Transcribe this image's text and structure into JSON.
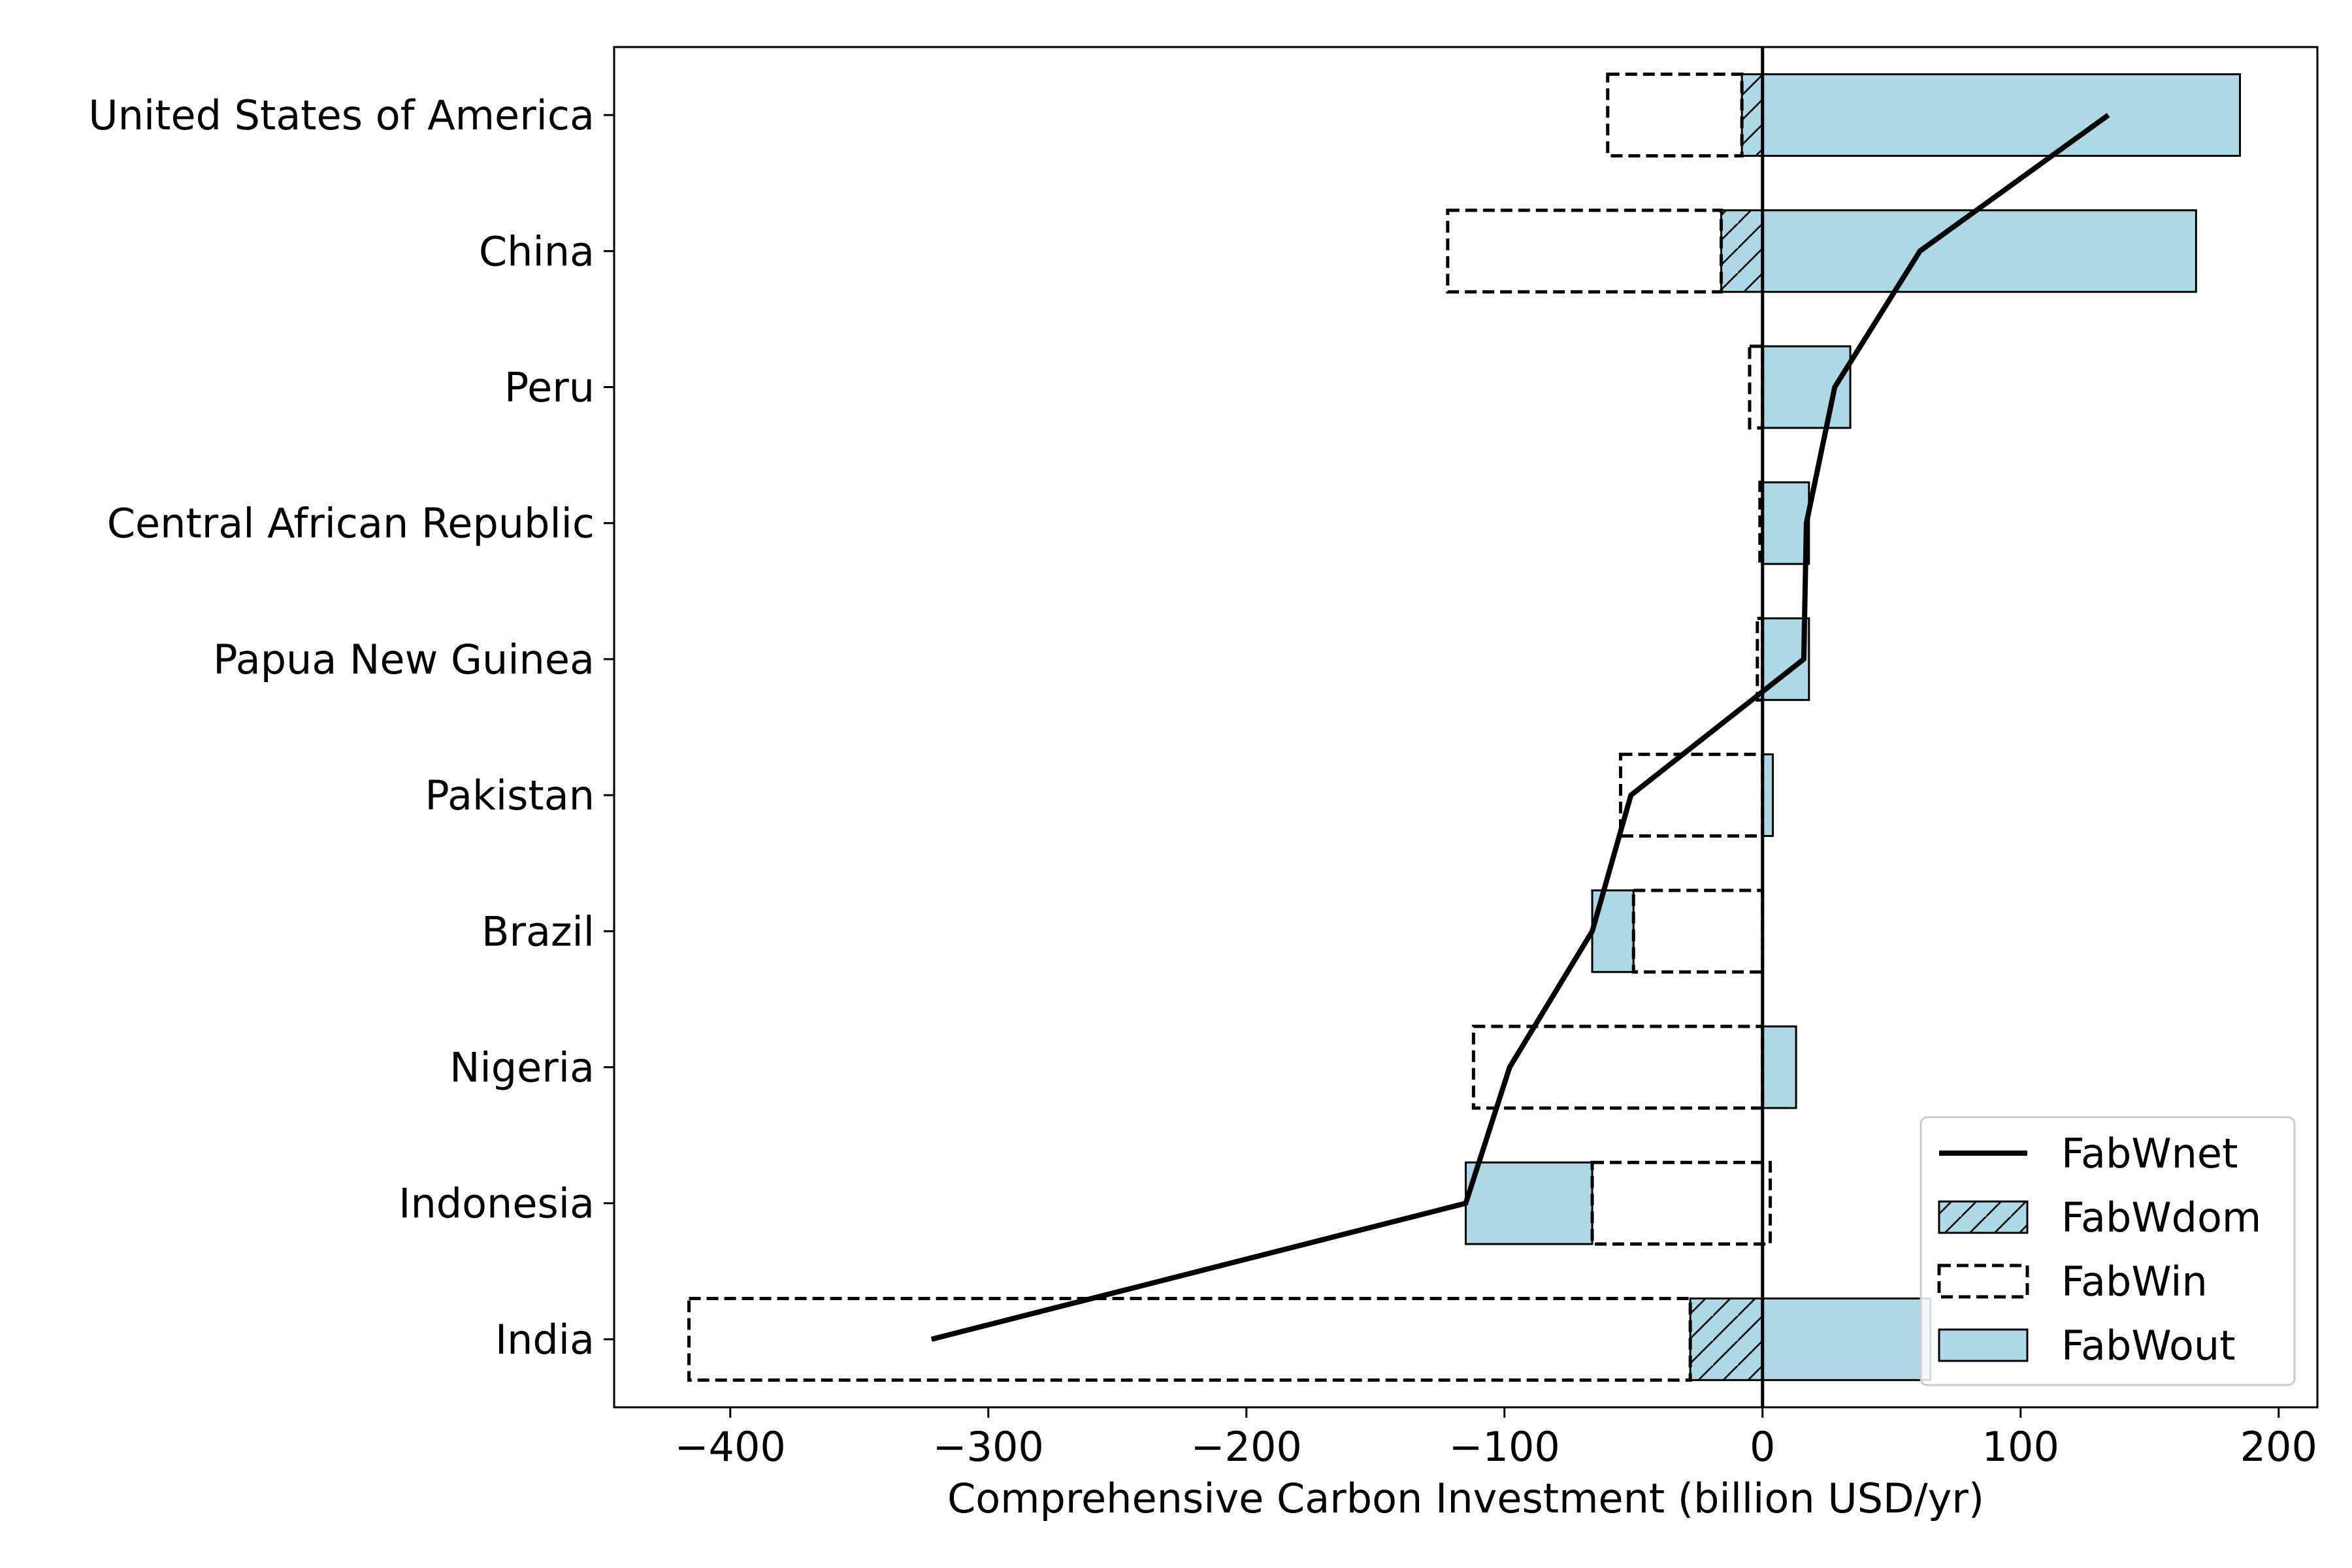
{
  "chart_data": {
    "type": "bar",
    "orientation": "horizontal",
    "title": "",
    "xlabel": "Comprehensive Carbon Investment (billion USD/yr)",
    "ylabel": "",
    "xlim": [
      -445,
      215
    ],
    "xticks": [
      -400,
      -300,
      -200,
      -100,
      0,
      100,
      200
    ],
    "xtick_labels": [
      "−400",
      "−300",
      "−200",
      "−100",
      "0",
      "100",
      "200"
    ],
    "grid": false,
    "legend_position": "bottom-right",
    "categories": [
      "United States of America",
      "China",
      "Peru",
      "Central African Republic",
      "Papua New Guinea",
      "Pakistan",
      "Brazil",
      "Nigeria",
      "Indonesia",
      "India"
    ],
    "series": [
      {
        "name": "FabWnet",
        "kind": "line",
        "color": "#000000",
        "values": [
          134,
          61,
          28,
          17,
          16,
          -51,
          -66,
          -98,
          -115,
          -322
        ]
      },
      {
        "name": "FabWdom",
        "kind": "hatched-bar",
        "color": "#add8e6",
        "values": [
          -8,
          -16,
          0,
          0,
          0,
          0,
          0,
          0,
          0,
          -28
        ]
      },
      {
        "name": "FabWin",
        "kind": "dashed-bar",
        "start": [
          -8,
          -16,
          0,
          0,
          0,
          0,
          0,
          0,
          3,
          -28
        ],
        "end": [
          -60,
          -122,
          -5,
          -1,
          -2,
          -55,
          -50,
          -112,
          -66,
          -416
        ]
      },
      {
        "name": "FabWout",
        "kind": "filled-bar",
        "color": "#add8e6",
        "start": [
          0,
          0,
          0,
          0,
          0,
          0,
          -50,
          0,
          -66,
          0
        ],
        "end": [
          185,
          168,
          34,
          18,
          18,
          4,
          -66,
          13,
          -115,
          65
        ]
      }
    ]
  }
}
